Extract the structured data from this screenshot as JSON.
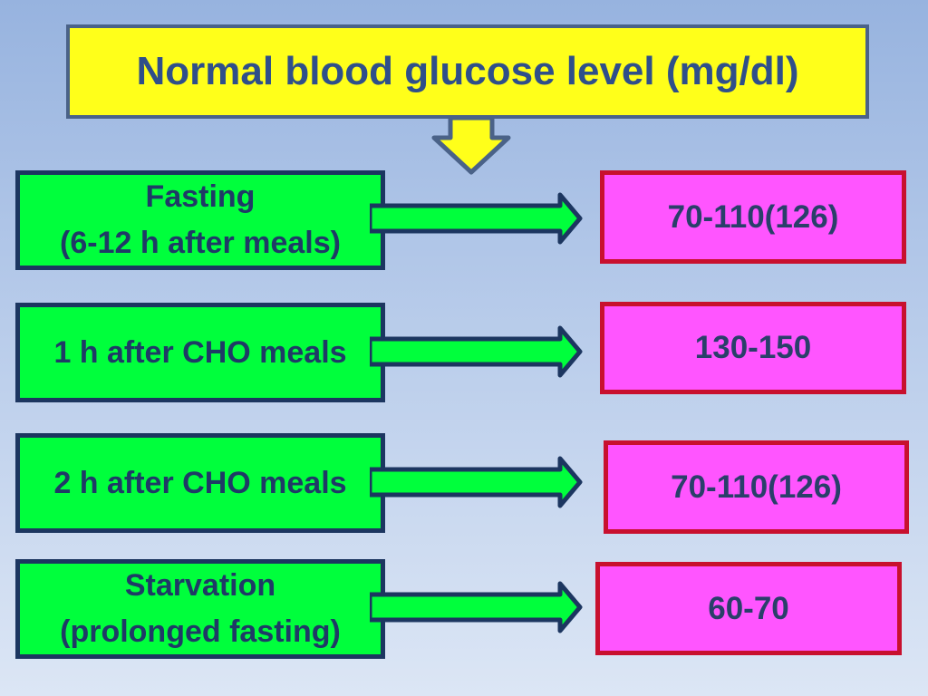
{
  "title": "Normal blood glucose level (mg/dl)",
  "rows": [
    {
      "condition": "Fasting\n(6-12 h after meals)",
      "value": "70-110(126)"
    },
    {
      "condition": "1 h after CHO meals",
      "value": "130-150"
    },
    {
      "condition": "2 h after CHO meals",
      "value": "70-110(126)"
    },
    {
      "condition": "Starvation\n(prolonged fasting)",
      "value": "60-70"
    }
  ],
  "colors": {
    "title_fill": "#ffff1a",
    "condition_fill": "#00ff3c",
    "value_fill": "#ff55ff",
    "value_border": "#c8102e",
    "text": "#2f4f8a"
  }
}
